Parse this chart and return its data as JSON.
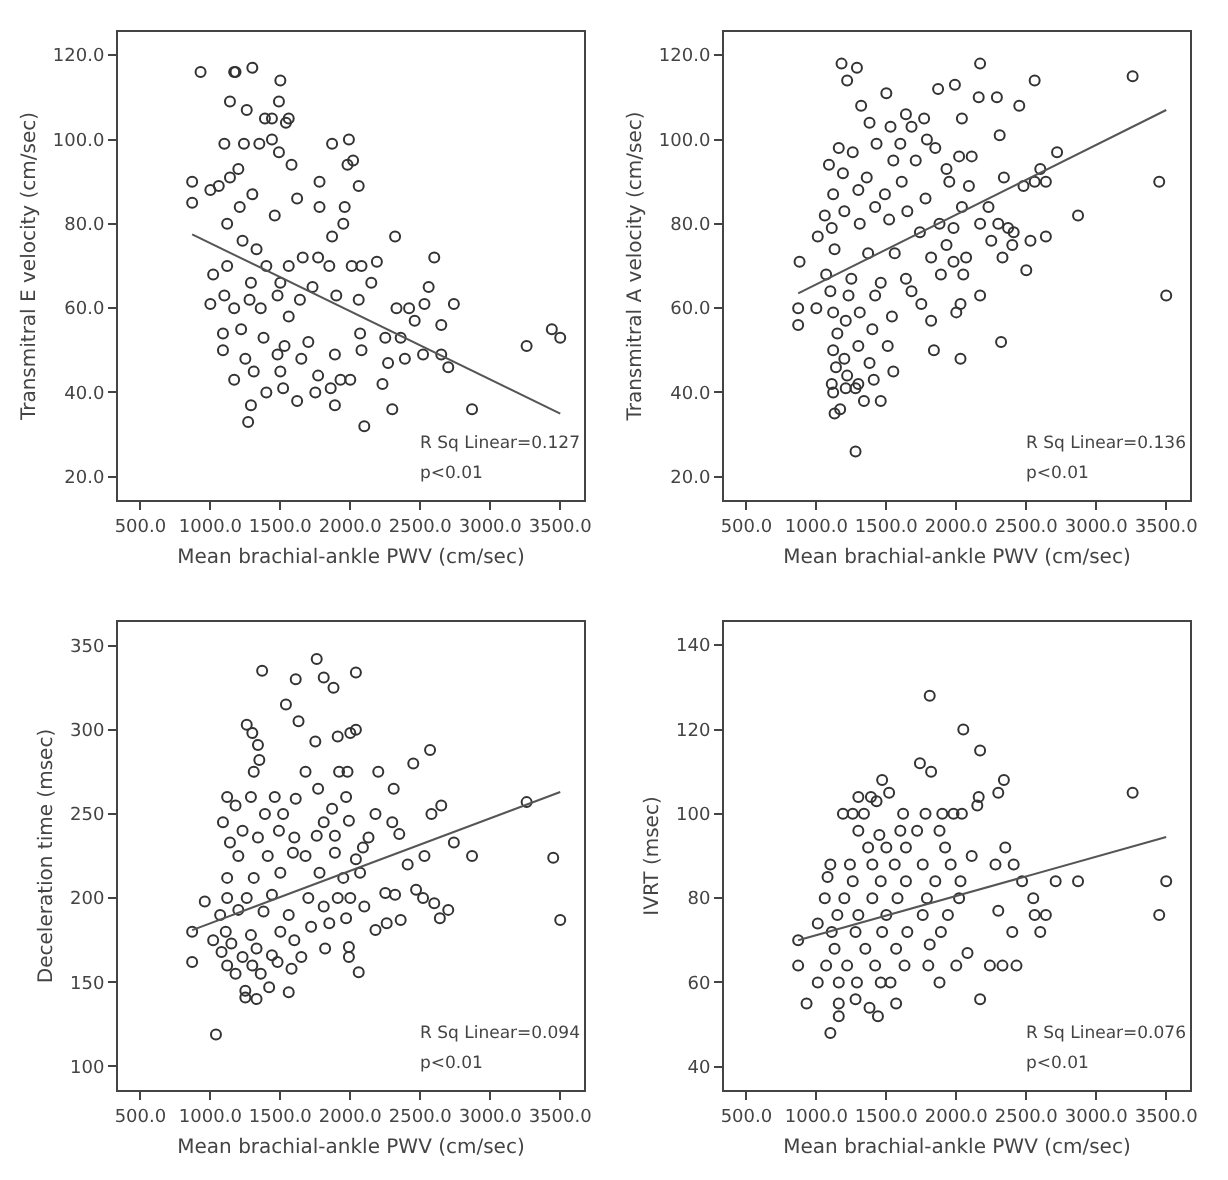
{
  "chart_data": [
    {
      "type": "scatter",
      "xlabel": "Mean brachial-ankle PWV (cm/sec)",
      "ylabel": "Transmitral E velocity (cm/sec)",
      "annotations": [
        "R Sq Linear=0.127",
        "p<0.01"
      ],
      "grid": false,
      "xlim": [
        340,
        3670
      ],
      "xticks": [
        {
          "value": 500,
          "label": "500.0"
        },
        {
          "value": 1000,
          "label": "1000.0"
        },
        {
          "value": 1500,
          "label": "1500.0"
        },
        {
          "value": 2000,
          "label": "2000.0"
        },
        {
          "value": 2500,
          "label": "2500.0"
        },
        {
          "value": 3000,
          "label": "3000.0"
        },
        {
          "value": 3500,
          "label": "3500.0"
        }
      ],
      "ylim": [
        14.5,
        125.5
      ],
      "yticks": [
        {
          "value": 20,
          "label": "20.0"
        },
        {
          "value": 40,
          "label": "40.0"
        },
        {
          "value": 60,
          "label": "60.0"
        },
        {
          "value": 80,
          "label": "80.0"
        },
        {
          "value": 100,
          "label": "100.0"
        },
        {
          "value": 120,
          "label": "120.0"
        }
      ],
      "series": [
        {
          "type": "scatter",
          "marker": "circle",
          "color": "#333333",
          "x": [
            930,
            1170,
            1180,
            1300,
            1500,
            1140,
            1490,
            1260,
            1390,
            1440,
            1560,
            1540,
            1100,
            1240,
            1350,
            1440,
            1990,
            1870,
            2020,
            1980,
            1580,
            1490,
            1200,
            1140,
            870,
            1000,
            1780,
            2060,
            870,
            1060,
            1300,
            1620,
            1780,
            1960,
            1210,
            1460,
            1120,
            1950,
            1870,
            2320,
            1230,
            1330,
            1660,
            1770,
            2600,
            1020,
            1120,
            1400,
            1560,
            1850,
            2010,
            2190,
            2080,
            1290,
            1500,
            1730,
            2150,
            1900,
            2560,
            1100,
            1280,
            1480,
            1640,
            2060,
            1170,
            1360,
            1560,
            2330,
            2420,
            2740,
            2530,
            2460,
            1000,
            1090,
            1220,
            1380,
            1530,
            1700,
            2070,
            2250,
            2360,
            2650,
            1090,
            1250,
            1480,
            1650,
            1890,
            2080,
            2270,
            2390,
            2520,
            2650,
            3260,
            3440,
            3500,
            1170,
            1310,
            1500,
            1770,
            1930,
            2000,
            2230,
            2700,
            1400,
            1520,
            1750,
            1860,
            1290,
            1620,
            1890,
            2300,
            2870,
            1270,
            2100
          ],
          "values": [
            116,
            116,
            116,
            117,
            114,
            109,
            109,
            107,
            105,
            105,
            105,
            104,
            99,
            99,
            99,
            100,
            100,
            99,
            95,
            94,
            94,
            97,
            93,
            91,
            90,
            88,
            90,
            89,
            85,
            89,
            87,
            86,
            84,
            84,
            84,
            82,
            80,
            80,
            77,
            77,
            76,
            74,
            72,
            72,
            72,
            68,
            70,
            70,
            70,
            70,
            70,
            71,
            70,
            66,
            66,
            65,
            66,
            63,
            65,
            63,
            62,
            63,
            62,
            62,
            60,
            60,
            58,
            60,
            60,
            61,
            61,
            57,
            61,
            54,
            55,
            53,
            51,
            52,
            54,
            53,
            53,
            56,
            50,
            48,
            49,
            48,
            49,
            50,
            47,
            48,
            49,
            49,
            51,
            55,
            53,
            43,
            45,
            45,
            44,
            43,
            43,
            42,
            46,
            40,
            41,
            40,
            41,
            37,
            38,
            37,
            36,
            36,
            33,
            32
          ]
        },
        {
          "type": "line",
          "color": "#555555",
          "x": [
            870,
            3500
          ],
          "values": [
            77.5,
            35
          ]
        }
      ]
    },
    {
      "type": "scatter",
      "xlabel": "Mean brachial-ankle PWV (cm/sec)",
      "ylabel": "Transmitral A velocity (cm/sec)",
      "annotations": [
        "R Sq Linear=0.136",
        "p<0.01"
      ],
      "grid": false,
      "xlim": [
        340,
        3670
      ],
      "xticks": [
        {
          "value": 500,
          "label": "500.0"
        },
        {
          "value": 1000,
          "label": "1000.0"
        },
        {
          "value": 1500,
          "label": "1500.0"
        },
        {
          "value": 2000,
          "label": "2000.0"
        },
        {
          "value": 2500,
          "label": "2500.0"
        },
        {
          "value": 3000,
          "label": "3000.0"
        },
        {
          "value": 3500,
          "label": "3500.0"
        }
      ],
      "ylim": [
        14.5,
        125.5
      ],
      "yticks": [
        {
          "value": 20,
          "label": "20.0"
        },
        {
          "value": 40,
          "label": "40.0"
        },
        {
          "value": 60,
          "label": "60.0"
        },
        {
          "value": 80,
          "label": "80.0"
        },
        {
          "value": 100,
          "label": "100.0"
        },
        {
          "value": 120,
          "label": "120.0"
        }
      ],
      "series": [
        {
          "type": "scatter",
          "marker": "circle",
          "color": "#333333",
          "x": [
            1180,
            1290,
            2170,
            1220,
            2560,
            3260,
            1500,
            1870,
            1990,
            2160,
            2290,
            2450,
            1320,
            1640,
            2040,
            1770,
            1380,
            1530,
            1680,
            1790,
            2310,
            1160,
            1260,
            1430,
            1600,
            1850,
            2020,
            2110,
            1090,
            1550,
            1710,
            1930,
            2720,
            2600,
            1190,
            1360,
            1610,
            1950,
            2090,
            2340,
            2480,
            2560,
            2640,
            3450,
            1120,
            1300,
            1490,
            1780,
            2040,
            2230,
            1060,
            1200,
            1420,
            1650,
            1880,
            2870,
            1010,
            1110,
            1310,
            1520,
            1740,
            1980,
            2170,
            2300,
            2370,
            2410,
            1930,
            2070,
            2250,
            2530,
            2640,
            880,
            1130,
            1370,
            1560,
            1820,
            1980,
            2400,
            2330,
            1070,
            1250,
            1460,
            1640,
            1890,
            2050,
            2500,
            1100,
            1230,
            1420,
            1680,
            870,
            1000,
            1120,
            1310,
            1540,
            1750,
            2000,
            2170,
            3500,
            870,
            1210,
            1400,
            1820,
            2030,
            1150,
            1300,
            1510,
            1840,
            2320,
            1120,
            1200,
            1380,
            2030,
            1140,
            1550,
            1220,
            1410,
            1300,
            1110,
            1280,
            1210,
            1120,
            1460,
            1340,
            1170,
            1130,
            1280
          ],
          "values": [
            118,
            117,
            118,
            114,
            114,
            115,
            111,
            112,
            113,
            110,
            110,
            108,
            108,
            106,
            105,
            105,
            104,
            103,
            103,
            100,
            101,
            98,
            97,
            99,
            99,
            98,
            96,
            96,
            94,
            95,
            95,
            93,
            97,
            93,
            92,
            91,
            90,
            90,
            89,
            91,
            89,
            90,
            90,
            90,
            87,
            88,
            87,
            86,
            84,
            84,
            82,
            83,
            84,
            83,
            80,
            82,
            77,
            79,
            80,
            81,
            78,
            79,
            80,
            80,
            79,
            78,
            75,
            72,
            76,
            76,
            77,
            71,
            74,
            73,
            73,
            72,
            71,
            75,
            72,
            68,
            67,
            66,
            67,
            68,
            68,
            69,
            64,
            63,
            63,
            64,
            60,
            60,
            59,
            59,
            58,
            61,
            59,
            63,
            63,
            56,
            57,
            55,
            57,
            61,
            54,
            51,
            51,
            50,
            52,
            50,
            48,
            47,
            48,
            46,
            45,
            44,
            43,
            42,
            42,
            41,
            41,
            40,
            38,
            38,
            36,
            35,
            26
          ]
        },
        {
          "type": "line",
          "color": "#555555",
          "x": [
            870,
            3500
          ],
          "values": [
            63.5,
            107
          ]
        }
      ]
    },
    {
      "type": "scatter",
      "xlabel": "Mean brachial-ankle PWV (cm/sec)",
      "ylabel": "Deceleration time (msec)",
      "annotations": [
        "R Sq Linear=0.094",
        "p<0.01"
      ],
      "grid": false,
      "xlim": [
        340,
        3670
      ],
      "xticks": [
        {
          "value": 500,
          "label": "500.0"
        },
        {
          "value": 1000,
          "label": "1000.0"
        },
        {
          "value": 1500,
          "label": "1500.0"
        },
        {
          "value": 2000,
          "label": "2000.0"
        },
        {
          "value": 2500,
          "label": "2500.0"
        },
        {
          "value": 3000,
          "label": "3000.0"
        },
        {
          "value": 3500,
          "label": "3500.0"
        }
      ],
      "ylim": [
        86,
        364
      ],
      "yticks": [
        100,
        150,
        200,
        250,
        300,
        350
      ],
      "series": [
        {
          "type": "scatter",
          "marker": "circle",
          "color": "#333333",
          "x": [
            1760,
            1370,
            2040,
            1610,
            1810,
            1880,
            1540,
            1260,
            1630,
            1300,
            1340,
            2040,
            2000,
            1910,
            1750,
            1350,
            1310,
            1680,
            1920,
            1980,
            2200,
            2570,
            2450,
            1120,
            1290,
            1460,
            1610,
            1970,
            1770,
            2310,
            2580,
            2650,
            3260,
            1180,
            1090,
            1390,
            1520,
            1870,
            2180,
            2300,
            1230,
            1490,
            1810,
            1990,
            2350,
            2740,
            1140,
            1340,
            1600,
            1760,
            1890,
            2130,
            2090,
            1200,
            1410,
            1590,
            1680,
            1890,
            2040,
            2530,
            2870,
            3450,
            1120,
            1310,
            1500,
            1780,
            1950,
            2070,
            2410,
            960,
            1120,
            1260,
            1440,
            1700,
            1910,
            2000,
            2250,
            2320,
            2470,
            2520,
            2600,
            1070,
            1200,
            1380,
            1560,
            1810,
            2100,
            2700,
            870,
            1110,
            1290,
            1500,
            1720,
            1850,
            1970,
            2180,
            2260,
            2360,
            2640,
            3500,
            1020,
            1150,
            1330,
            1600,
            1820,
            1990,
            1080,
            1230,
            1440,
            1650,
            1990,
            870,
            1120,
            1300,
            1480,
            1580,
            1180,
            1360,
            2060,
            1250,
            1420,
            1560,
            1330,
            1250,
            1040
          ],
          "values": [
            342,
            335,
            334,
            330,
            331,
            325,
            315,
            303,
            305,
            298,
            291,
            300,
            298,
            296,
            293,
            282,
            275,
            275,
            275,
            275,
            275,
            288,
            280,
            260,
            260,
            260,
            259,
            260,
            265,
            265,
            250,
            255,
            257,
            255,
            245,
            250,
            250,
            253,
            250,
            245,
            240,
            240,
            245,
            246,
            238,
            233,
            233,
            236,
            236,
            237,
            237,
            236,
            230,
            225,
            225,
            227,
            225,
            227,
            223,
            225,
            225,
            224,
            212,
            212,
            215,
            215,
            212,
            215,
            220,
            198,
            200,
            200,
            202,
            200,
            200,
            200,
            203,
            202,
            205,
            200,
            197,
            190,
            193,
            192,
            190,
            195,
            195,
            193,
            180,
            180,
            178,
            180,
            183,
            185,
            188,
            181,
            185,
            187,
            188,
            187,
            175,
            173,
            170,
            175,
            170,
            171,
            168,
            165,
            166,
            165,
            165,
            162,
            160,
            160,
            162,
            158,
            155,
            155,
            156,
            145,
            147,
            144,
            140,
            141,
            119
          ]
        },
        {
          "type": "line",
          "color": "#555555",
          "x": [
            870,
            3500
          ],
          "values": [
            181,
            263
          ]
        }
      ]
    },
    {
      "type": "scatter",
      "xlabel": "Mean brachial-ankle PWV (cm/sec)",
      "ylabel": "IVRT (msec)",
      "annotations": [
        "R Sq Linear=0.076",
        "p<0.01"
      ],
      "grid": false,
      "xlim": [
        340,
        3670
      ],
      "xticks": [
        {
          "value": 500,
          "label": "500.0"
        },
        {
          "value": 1000,
          "label": "1000.0"
        },
        {
          "value": 1500,
          "label": "1500.0"
        },
        {
          "value": 2000,
          "label": "2000.0"
        },
        {
          "value": 2500,
          "label": "2500.0"
        },
        {
          "value": 3000,
          "label": "3000.0"
        },
        {
          "value": 3500,
          "label": "3500.0"
        }
      ],
      "ylim": [
        34.5,
        145.5
      ],
      "yticks": [
        40,
        60,
        80,
        100,
        120,
        140
      ],
      "series": [
        {
          "type": "scatter",
          "marker": "circle",
          "color": "#333333",
          "x": [
            1810,
            2050,
            2170,
            1740,
            1820,
            2340,
            1470,
            1520,
            2300,
            3260,
            1300,
            1390,
            2160,
            1430,
            2150,
            1190,
            1260,
            1340,
            1620,
            1780,
            1900,
            1980,
            2040,
            1720,
            1300,
            1450,
            1880,
            1600,
            1370,
            1500,
            1640,
            1920,
            2350,
            1100,
            1240,
            1400,
            1560,
            1760,
            1960,
            2110,
            2280,
            2410,
            1080,
            1260,
            1460,
            1640,
            1850,
            2030,
            2470,
            2710,
            2870,
            3500,
            1060,
            1200,
            1400,
            1580,
            1790,
            2020,
            2550,
            1150,
            1300,
            1500,
            1760,
            1940,
            2560,
            2640,
            3450,
            2300,
            1110,
            1280,
            1470,
            1650,
            1890,
            2400,
            2600,
            870,
            1130,
            1350,
            1570,
            1810,
            2080,
            1010,
            1070,
            870,
            1220,
            1420,
            1630,
            1800,
            2000,
            2240,
            2330,
            2430,
            1010,
            1160,
            1290,
            1460,
            1530,
            1880,
            930,
            1160,
            1280,
            1380,
            1570,
            2170,
            1440,
            1160,
            1100
          ],
          "values": [
            128,
            120,
            115,
            112,
            110,
            108,
            108,
            105,
            105,
            105,
            104,
            104,
            104,
            103,
            102,
            100,
            100,
            100,
            100,
            100,
            100,
            100,
            100,
            96,
            96,
            95,
            96,
            96,
            92,
            92,
            92,
            92,
            92,
            88,
            88,
            88,
            88,
            88,
            88,
            90,
            88,
            88,
            85,
            84,
            84,
            84,
            84,
            84,
            84,
            84,
            84,
            84,
            80,
            80,
            80,
            80,
            80,
            80,
            80,
            76,
            76,
            76,
            76,
            76,
            76,
            76,
            76,
            77,
            72,
            72,
            72,
            72,
            72,
            72,
            72,
            70,
            68,
            68,
            68,
            69,
            67,
            74,
            64,
            64,
            64,
            64,
            64,
            64,
            64,
            64,
            64,
            64,
            60,
            60,
            60,
            60,
            60,
            60,
            55,
            55,
            56,
            54,
            55,
            56,
            52,
            52,
            48
          ]
        },
        {
          "type": "line",
          "color": "#555555",
          "x": [
            870,
            3500
          ],
          "values": [
            70,
            94.5
          ]
        }
      ]
    }
  ]
}
